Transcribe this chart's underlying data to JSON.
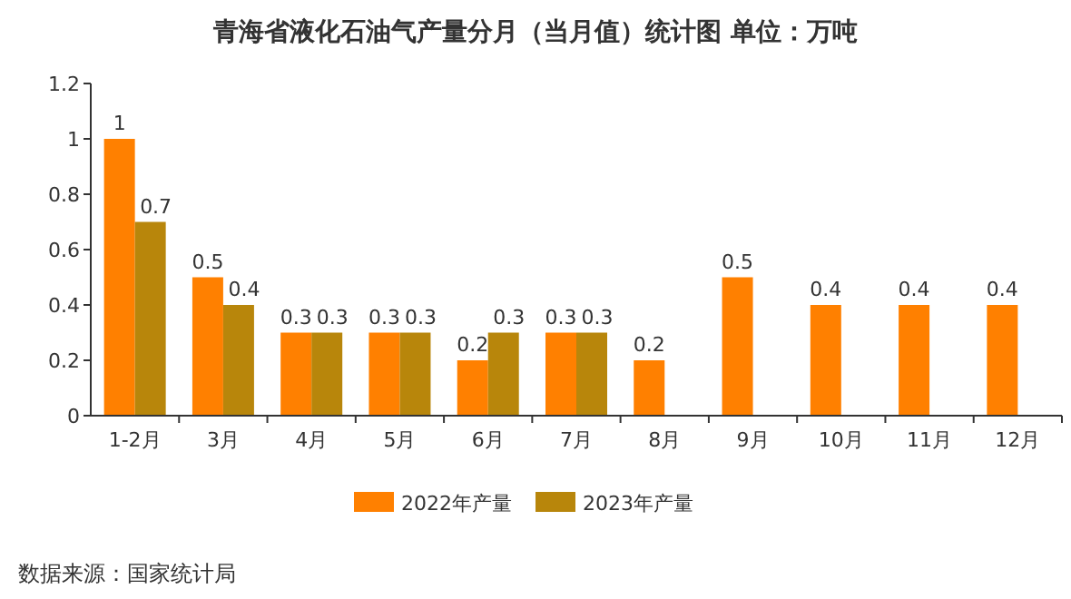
{
  "chart_data": {
    "type": "bar",
    "title": "青海省液化石油气产量分月（当月值）统计图 单位：万吨",
    "categories": [
      "1-2月",
      "3月",
      "4月",
      "5月",
      "6月",
      "7月",
      "8月",
      "9月",
      "10月",
      "11月",
      "12月"
    ],
    "series": [
      {
        "name": "2022年产量",
        "color": "#ff8000",
        "values": [
          1,
          0.5,
          0.3,
          0.3,
          0.2,
          0.3,
          0.2,
          0.5,
          0.4,
          0.4,
          0.4
        ]
      },
      {
        "name": "2023年产量",
        "color": "#b8860b",
        "values": [
          0.7,
          0.4,
          0.3,
          0.3,
          0.3,
          0.3,
          null,
          null,
          null,
          null,
          null
        ]
      }
    ],
    "ylim": [
      0,
      1.2
    ],
    "yticks": [
      0,
      0.2,
      0.4,
      0.6,
      0.8,
      1,
      1.2
    ],
    "data_labels": true,
    "legend": "bottom",
    "annotations": [
      "数据来源：国家统计局"
    ]
  }
}
